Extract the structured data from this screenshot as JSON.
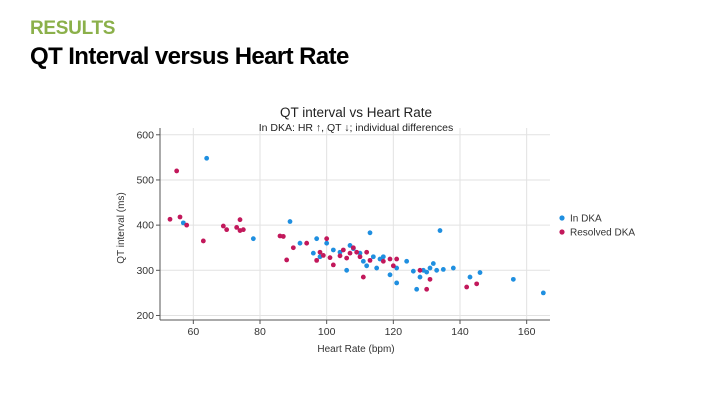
{
  "slide": {
    "section_label": "RESULTS",
    "title": "QT Interval versus Heart Rate"
  },
  "colors": {
    "section_label": "#8bb04a",
    "series_in_dka": "#1f8fe0",
    "series_resolved_dka": "#c2185b",
    "grid": "#e2e2e2"
  },
  "chart_data": {
    "type": "scatter",
    "title": "QT interval vs Heart Rate",
    "subtitle": "In DKA: HR ↑, QT ↓; individual differences",
    "xlabel": "Heart Rate (bpm)",
    "ylabel": "QT interval (ms)",
    "xlim": [
      50,
      167
    ],
    "ylim": [
      190,
      615
    ],
    "xticks": [
      60,
      80,
      100,
      120,
      140,
      160
    ],
    "yticks": [
      200,
      300,
      400,
      500,
      600
    ],
    "grid": true,
    "legend_position": "right",
    "series": [
      {
        "name": "In DKA",
        "points": [
          [
            64,
            548
          ],
          [
            57,
            405
          ],
          [
            78,
            370
          ],
          [
            89,
            408
          ],
          [
            92,
            360
          ],
          [
            96,
            338
          ],
          [
            97,
            370
          ],
          [
            98,
            330
          ],
          [
            100,
            360
          ],
          [
            102,
            345
          ],
          [
            104,
            340
          ],
          [
            106,
            300
          ],
          [
            107,
            355
          ],
          [
            108,
            348
          ],
          [
            110,
            338
          ],
          [
            111,
            320
          ],
          [
            112,
            310
          ],
          [
            113,
            383
          ],
          [
            114,
            330
          ],
          [
            115,
            305
          ],
          [
            116,
            325
          ],
          [
            117,
            330
          ],
          [
            119,
            290
          ],
          [
            121,
            305
          ],
          [
            121,
            272
          ],
          [
            124,
            320
          ],
          [
            126,
            298
          ],
          [
            127,
            258
          ],
          [
            128,
            285
          ],
          [
            129,
            300
          ],
          [
            130,
            296
          ],
          [
            131,
            305
          ],
          [
            132,
            315
          ],
          [
            133,
            300
          ],
          [
            134,
            388
          ],
          [
            135,
            302
          ],
          [
            138,
            305
          ],
          [
            143,
            285
          ],
          [
            146,
            295
          ],
          [
            156,
            280
          ],
          [
            165,
            250
          ]
        ]
      },
      {
        "name": "Resolved DKA",
        "points": [
          [
            53,
            413
          ],
          [
            55,
            520
          ],
          [
            56,
            418
          ],
          [
            58,
            400
          ],
          [
            63,
            365
          ],
          [
            69,
            398
          ],
          [
            70,
            390
          ],
          [
            73,
            395
          ],
          [
            74,
            412
          ],
          [
            74,
            388
          ],
          [
            75,
            390
          ],
          [
            86,
            376
          ],
          [
            87,
            375
          ],
          [
            88,
            323
          ],
          [
            90,
            350
          ],
          [
            94,
            360
          ],
          [
            97,
            322
          ],
          [
            98,
            340
          ],
          [
            99,
            333
          ],
          [
            100,
            370
          ],
          [
            101,
            328
          ],
          [
            102,
            312
          ],
          [
            104,
            332
          ],
          [
            105,
            345
          ],
          [
            106,
            327
          ],
          [
            107,
            338
          ],
          [
            108,
            350
          ],
          [
            109,
            340
          ],
          [
            110,
            330
          ],
          [
            111,
            285
          ],
          [
            112,
            340
          ],
          [
            113,
            322
          ],
          [
            117,
            320
          ],
          [
            119,
            325
          ],
          [
            120,
            310
          ],
          [
            121,
            325
          ],
          [
            128,
            300
          ],
          [
            130,
            258
          ],
          [
            131,
            280
          ],
          [
            142,
            263
          ],
          [
            145,
            270
          ]
        ]
      }
    ]
  }
}
